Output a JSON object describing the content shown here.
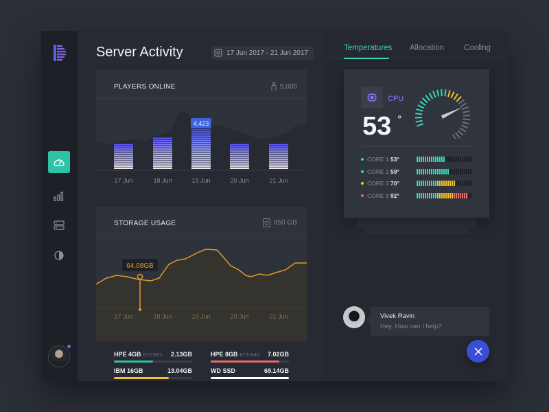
{
  "page": {
    "title": "Server Activity",
    "date_range": "17 Jun 2017 - 21 Jun 2017"
  },
  "players": {
    "title": "PLAYERS ONLINE",
    "total": "5,000",
    "highlight": "4,423",
    "days": [
      "17 Jun",
      "18 Jun",
      "19 Jun",
      "20 Jun",
      "21 Jun"
    ]
  },
  "storage": {
    "title": "STORAGE USAGE",
    "total": "850 GB",
    "tooltip": "64.08GB",
    "days": [
      "17 Jun",
      "18 Jun",
      "19 Jun",
      "20 Jun",
      "21 Jun"
    ],
    "disks": [
      {
        "name": "HPE 4GB",
        "code": "872-B21",
        "value": "2.13GB",
        "fraction": 0.5,
        "color": "#2ec3a6"
      },
      {
        "name": "HPE 8GB",
        "code": "873-B40",
        "value": "7.02GB",
        "fraction": 0.88,
        "color": "#e86a6a"
      },
      {
        "name": "IBM 16GB",
        "code": "",
        "value": "13.04GB",
        "fraction": 0.7,
        "color": "#f2c230"
      },
      {
        "name": "WD SSD",
        "code": "",
        "value": "69.14GB",
        "fraction": 1.0,
        "color": "#ffffff"
      }
    ]
  },
  "tabs": [
    "Temperatures",
    "Allocation",
    "Cooling"
  ],
  "cpu": {
    "label": "CPU",
    "temperature": "53",
    "degree": "°",
    "cores": [
      {
        "name": "CORE 1",
        "value": "53°",
        "color": "#39d6b5",
        "level": 0.53
      },
      {
        "name": "CORE 2",
        "value": "59°",
        "color": "#39d6b5",
        "level": 0.59
      },
      {
        "name": "CORE 3",
        "value": "70°",
        "color": "#f2c230",
        "level": 0.7
      },
      {
        "name": "CORE 3",
        "value": "92°",
        "color": "#e86a6a",
        "level": 0.92
      }
    ]
  },
  "chat": {
    "name": "Vivek Ravin",
    "message": "Hey, How can I help?"
  },
  "colors": {
    "accent": "#39d6b5",
    "purple": "#6d4ee0",
    "orange": "#e09a2b",
    "blue": "#3b4fd6"
  }
}
